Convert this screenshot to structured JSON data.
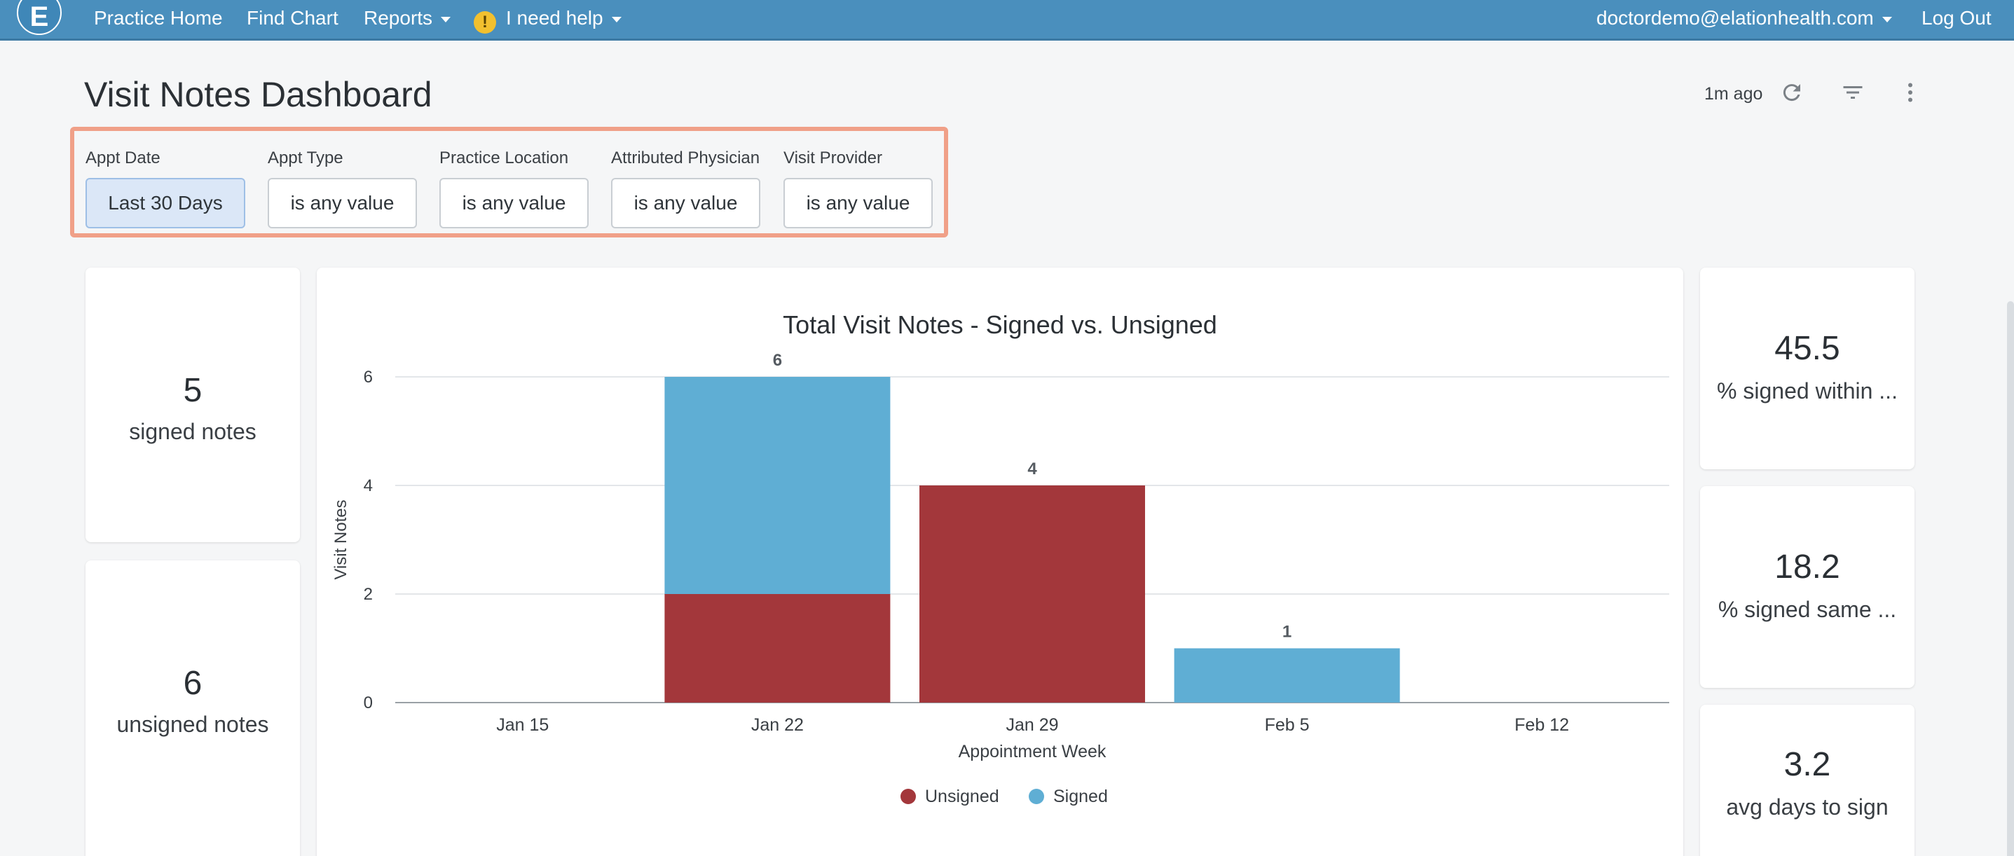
{
  "nav": {
    "logo_letter": "E",
    "items": [
      "Practice Home",
      "Find Chart",
      "Reports"
    ],
    "help": "I need help",
    "help_icon": "!",
    "user": "doctordemo@elationhealth.com",
    "logout": "Log Out"
  },
  "header": {
    "title": "Visit Notes Dashboard",
    "updated": "1m ago",
    "icons": [
      "refresh-icon",
      "filter-icon",
      "more-vertical-icon"
    ]
  },
  "filters": [
    {
      "label": "Appt Date",
      "value": "Last 30 Days"
    },
    {
      "label": "Appt Type",
      "value": "is any value"
    },
    {
      "label": "Practice Location",
      "value": "is any value"
    },
    {
      "label": "Attributed Physician",
      "value": "is any value"
    },
    {
      "label": "Visit Provider",
      "value": "is any value"
    }
  ],
  "kpis": {
    "signed": {
      "value": "5",
      "label": "signed notes"
    },
    "unsigned": {
      "value": "6",
      "label": "unsigned notes"
    },
    "within": {
      "value": "45.5",
      "label": "% signed within ..."
    },
    "same": {
      "value": "18.2",
      "label": "% signed same ..."
    },
    "avg": {
      "value": "3.2",
      "label": "avg days to sign"
    }
  },
  "colors": {
    "unsigned": "#a3373b",
    "signed": "#5faed4",
    "nav": "#4a8fbd",
    "highlight": "#f0a088"
  },
  "chart_data": {
    "type": "bar",
    "stacked": true,
    "title": "Total Visit Notes - Signed vs. Unsigned",
    "xlabel": "Appointment Week",
    "ylabel": "Visit Notes",
    "categories": [
      "Jan 15",
      "Jan 22",
      "Jan 29",
      "Feb 5",
      "Feb 12"
    ],
    "series": [
      {
        "name": "Unsigned",
        "values": [
          0,
          2,
          4,
          0,
          0
        ]
      },
      {
        "name": "Signed",
        "values": [
          0,
          4,
          0,
          1,
          0
        ]
      }
    ],
    "totals": [
      0,
      6,
      4,
      1,
      0
    ],
    "yticks": [
      0,
      2,
      4,
      6
    ],
    "ylim": [
      0,
      6
    ],
    "grid": true,
    "legend": "bottom-center"
  }
}
